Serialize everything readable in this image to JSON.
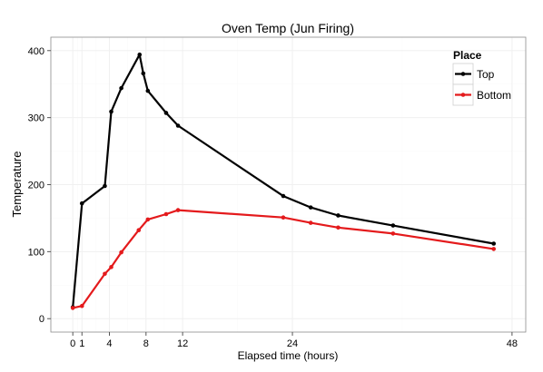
{
  "chart_data": {
    "type": "line",
    "title": "Oven Temp (Jun Firing)",
    "xlabel": "Elapsed time (hours)",
    "ylabel": "Temperature",
    "xlim": [
      -2.4,
      49.5
    ],
    "ylim": [
      -20,
      420
    ],
    "xticks": [
      0,
      1,
      4,
      8,
      12,
      24,
      48
    ],
    "yticks": [
      0,
      100,
      200,
      300,
      400
    ],
    "grid": true,
    "legend_position": "top-right",
    "legend_title": "Place",
    "series": [
      {
        "name": "Top",
        "color": "#000000",
        "x": [
          0,
          1,
          3.5,
          4.2,
          5.3,
          7.3,
          7.7,
          8.2,
          10.2,
          11.5,
          23,
          26,
          29,
          35,
          46
        ],
        "y": [
          17,
          172,
          198,
          309,
          344,
          394,
          366,
          340,
          307,
          288,
          183,
          166,
          154,
          139,
          112
        ]
      },
      {
        "name": "Bottom",
        "color": "#e41a1c",
        "x": [
          0,
          1,
          3.5,
          4.2,
          5.3,
          7.2,
          8.2,
          10.2,
          11.5,
          23,
          26,
          29,
          35,
          46
        ],
        "y": [
          16,
          19,
          67,
          77,
          99,
          132,
          148,
          156,
          162,
          151,
          143,
          136,
          127,
          104
        ]
      }
    ]
  }
}
